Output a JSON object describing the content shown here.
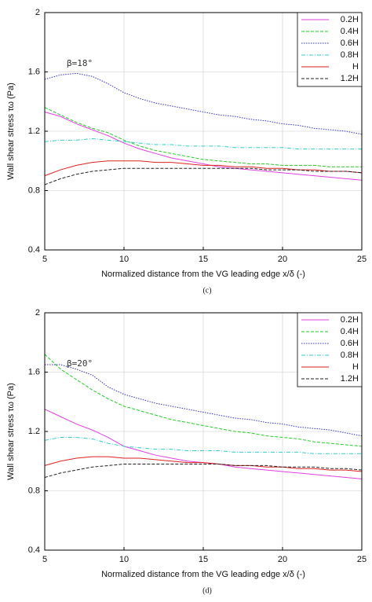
{
  "chart_data": [
    {
      "type": "line",
      "caption": "(c)",
      "annotation": "β=18°",
      "xlabel": "Normalized distance from the VG leading edge x/δ (-)",
      "ylabel": "Wall shear stress  τω (Pa)",
      "xlim": [
        5,
        25
      ],
      "xticks": [
        5,
        10,
        15,
        20,
        25
      ],
      "ylim": [
        0.4,
        2
      ],
      "yticks": [
        0.4,
        0.8,
        1.2,
        1.6,
        2
      ],
      "grid": true,
      "legend": "top-right",
      "x": [
        5,
        6,
        7,
        8,
        9,
        10,
        11,
        12,
        13,
        14,
        15,
        16,
        17,
        18,
        19,
        20,
        21,
        22,
        23,
        24,
        25
      ],
      "series": [
        {
          "name": "0.2H",
          "color": "#e040e0",
          "dash": "solid",
          "values": [
            1.33,
            1.3,
            1.25,
            1.21,
            1.17,
            1.12,
            1.08,
            1.05,
            1.02,
            1.0,
            0.98,
            0.96,
            0.95,
            0.94,
            0.93,
            0.92,
            0.91,
            0.9,
            0.89,
            0.88,
            0.87
          ]
        },
        {
          "name": "0.4H",
          "color": "#22cc22",
          "dash": "dashed",
          "values": [
            1.36,
            1.31,
            1.26,
            1.22,
            1.19,
            1.14,
            1.1,
            1.07,
            1.05,
            1.03,
            1.01,
            1.0,
            0.99,
            0.98,
            0.98,
            0.97,
            0.97,
            0.97,
            0.96,
            0.96,
            0.96
          ]
        },
        {
          "name": "0.6H",
          "color": "#3333cc",
          "dash": "dotted",
          "values": [
            1.55,
            1.58,
            1.59,
            1.57,
            1.52,
            1.46,
            1.42,
            1.39,
            1.37,
            1.35,
            1.33,
            1.31,
            1.3,
            1.28,
            1.27,
            1.25,
            1.24,
            1.22,
            1.21,
            1.2,
            1.18
          ]
        },
        {
          "name": "0.8H",
          "color": "#33cccc",
          "dash": "dashdot",
          "values": [
            1.13,
            1.14,
            1.14,
            1.15,
            1.14,
            1.13,
            1.12,
            1.11,
            1.11,
            1.1,
            1.1,
            1.1,
            1.09,
            1.09,
            1.09,
            1.09,
            1.08,
            1.08,
            1.08,
            1.08,
            1.08
          ]
        },
        {
          "name": "H",
          "color": "#dd2222",
          "dash": "solid",
          "values": [
            0.9,
            0.94,
            0.97,
            0.99,
            1.0,
            1.0,
            1.0,
            0.99,
            0.99,
            0.98,
            0.97,
            0.97,
            0.96,
            0.96,
            0.95,
            0.95,
            0.94,
            0.94,
            0.93,
            0.93,
            0.92
          ]
        },
        {
          "name": "1.2H",
          "color": "#222222",
          "dash": "dashed",
          "values": [
            0.84,
            0.88,
            0.91,
            0.93,
            0.94,
            0.95,
            0.95,
            0.95,
            0.95,
            0.95,
            0.95,
            0.95,
            0.95,
            0.95,
            0.94,
            0.94,
            0.94,
            0.93,
            0.93,
            0.93,
            0.92
          ]
        }
      ]
    },
    {
      "type": "line",
      "caption": "(d)",
      "annotation": "β=20°",
      "xlabel": "Normalized distance from the VG leading edge x/δ (-)",
      "ylabel": "Wall shear stress  τω (Pa)",
      "xlim": [
        5,
        25
      ],
      "xticks": [
        5,
        10,
        15,
        20,
        25
      ],
      "ylim": [
        0.4,
        2
      ],
      "yticks": [
        0.4,
        0.8,
        1.2,
        1.6,
        2
      ],
      "grid": true,
      "legend": "top-right",
      "x": [
        5,
        6,
        7,
        8,
        9,
        10,
        11,
        12,
        13,
        14,
        15,
        16,
        17,
        18,
        19,
        20,
        21,
        22,
        23,
        24,
        25
      ],
      "series": [
        {
          "name": "0.2H",
          "color": "#e040e0",
          "dash": "solid",
          "values": [
            1.35,
            1.3,
            1.25,
            1.21,
            1.16,
            1.1,
            1.07,
            1.04,
            1.02,
            1.0,
            0.99,
            0.98,
            0.96,
            0.95,
            0.94,
            0.93,
            0.92,
            0.91,
            0.9,
            0.89,
            0.88
          ]
        },
        {
          "name": "0.4H",
          "color": "#22cc22",
          "dash": "dashed",
          "values": [
            1.72,
            1.62,
            1.55,
            1.48,
            1.42,
            1.37,
            1.34,
            1.31,
            1.28,
            1.26,
            1.24,
            1.22,
            1.2,
            1.19,
            1.17,
            1.16,
            1.15,
            1.13,
            1.12,
            1.11,
            1.1
          ]
        },
        {
          "name": "0.6H",
          "color": "#3333cc",
          "dash": "dotted",
          "values": [
            1.65,
            1.65,
            1.62,
            1.58,
            1.5,
            1.45,
            1.42,
            1.39,
            1.37,
            1.35,
            1.33,
            1.31,
            1.29,
            1.28,
            1.26,
            1.25,
            1.23,
            1.22,
            1.21,
            1.19,
            1.17
          ]
        },
        {
          "name": "0.8H",
          "color": "#33cccc",
          "dash": "dashdot",
          "values": [
            1.14,
            1.16,
            1.16,
            1.15,
            1.12,
            1.1,
            1.09,
            1.08,
            1.08,
            1.07,
            1.07,
            1.07,
            1.06,
            1.06,
            1.06,
            1.06,
            1.06,
            1.05,
            1.05,
            1.05,
            1.05
          ]
        },
        {
          "name": "H",
          "color": "#dd2222",
          "dash": "solid",
          "values": [
            0.97,
            1.0,
            1.02,
            1.03,
            1.03,
            1.02,
            1.02,
            1.01,
            1.0,
            0.99,
            0.99,
            0.98,
            0.97,
            0.97,
            0.96,
            0.96,
            0.95,
            0.95,
            0.94,
            0.94,
            0.93
          ]
        },
        {
          "name": "1.2H",
          "color": "#222222",
          "dash": "dashed",
          "values": [
            0.89,
            0.92,
            0.94,
            0.96,
            0.97,
            0.98,
            0.98,
            0.98,
            0.98,
            0.98,
            0.98,
            0.98,
            0.97,
            0.97,
            0.97,
            0.96,
            0.96,
            0.96,
            0.95,
            0.95,
            0.94
          ]
        }
      ]
    }
  ]
}
